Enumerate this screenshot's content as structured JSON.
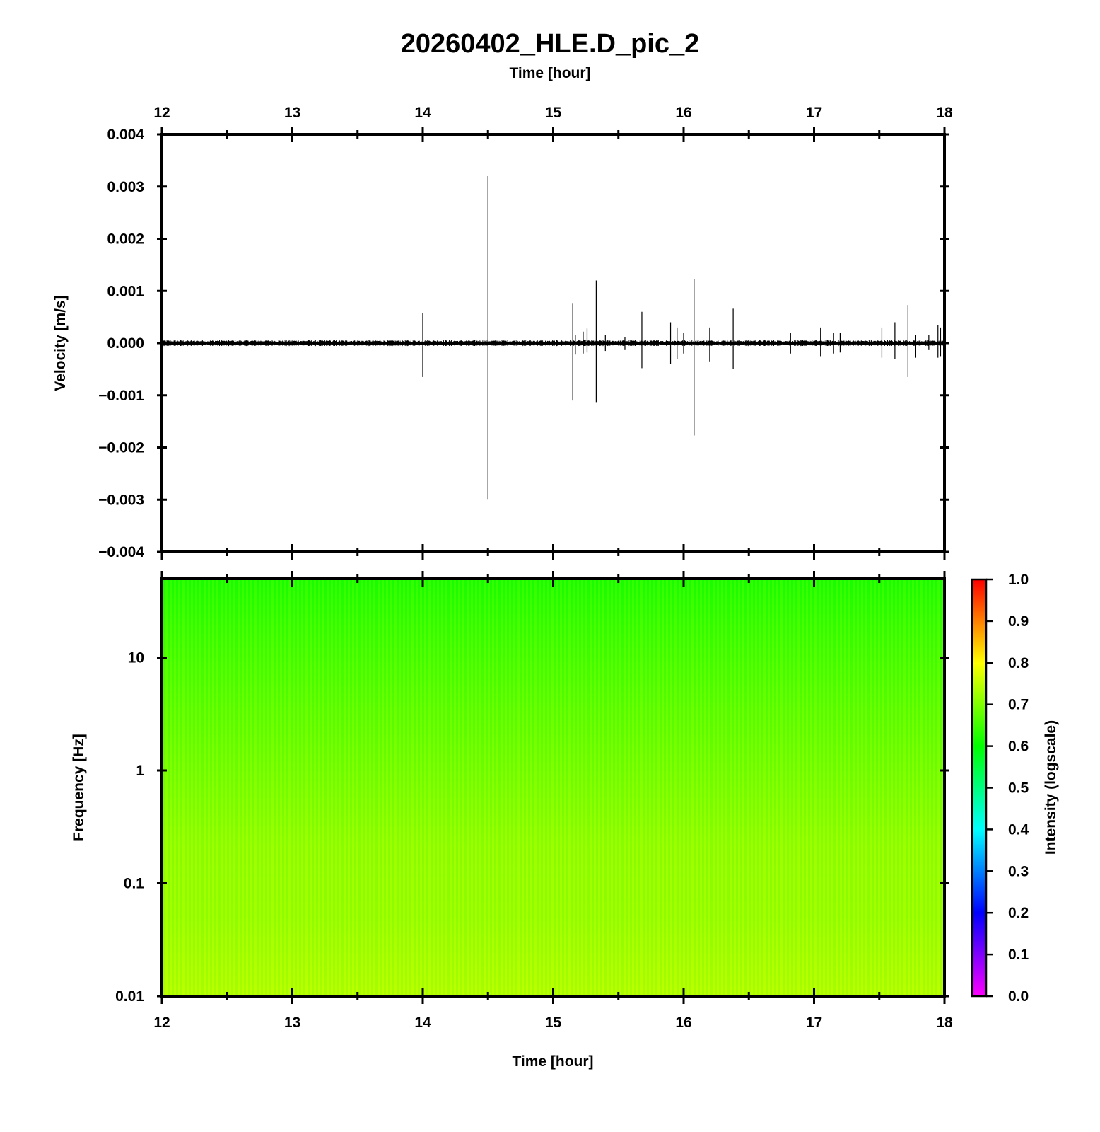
{
  "chart_data": [
    {
      "type": "line",
      "panel": "waveform",
      "title": "20260402_HLE.D_pic_2",
      "top_xlabel": "Time [hour]",
      "ylabel": "Velocity [m/s]",
      "xlim": [
        12,
        18
      ],
      "ylim": [
        -0.004,
        0.004
      ],
      "xticks": [
        12,
        13,
        14,
        15,
        16,
        17,
        18
      ],
      "yticks": [
        {
          "v": 0.004,
          "label": "0.004"
        },
        {
          "v": 0.003,
          "label": "0.003"
        },
        {
          "v": 0.002,
          "label": "0.002"
        },
        {
          "v": 0.001,
          "label": "0.001"
        },
        {
          "v": 0.0,
          "label": "0.000"
        },
        {
          "v": -0.001,
          "label": "−0.001"
        },
        {
          "v": -0.002,
          "label": "−0.002"
        },
        {
          "v": -0.003,
          "label": "−0.003"
        },
        {
          "v": -0.004,
          "label": "−0.004"
        }
      ],
      "grid": false,
      "noise_amplitude": 4e-05,
      "spikes": [
        {
          "t": 14.0,
          "max": 0.00058,
          "min": -0.00065
        },
        {
          "t": 14.5,
          "max": 0.0032,
          "min": -0.003
        },
        {
          "t": 15.15,
          "max": 0.00077,
          "min": -0.0011
        },
        {
          "t": 15.17,
          "max": 0.00015,
          "min": -0.00022
        },
        {
          "t": 15.23,
          "max": 0.00022,
          "min": -0.0002
        },
        {
          "t": 15.26,
          "max": 0.00028,
          "min": -0.00018
        },
        {
          "t": 15.33,
          "max": 0.0012,
          "min": -0.00113
        },
        {
          "t": 15.4,
          "max": 0.00015,
          "min": -0.00015
        },
        {
          "t": 15.55,
          "max": 0.00012,
          "min": -0.00012
        },
        {
          "t": 15.68,
          "max": 0.0006,
          "min": -0.00048
        },
        {
          "t": 15.9,
          "max": 0.0004,
          "min": -0.0004
        },
        {
          "t": 15.95,
          "max": 0.0003,
          "min": -0.0003
        },
        {
          "t": 16.0,
          "max": 0.0002,
          "min": -0.0002
        },
        {
          "t": 16.08,
          "max": 0.00123,
          "min": -0.00177
        },
        {
          "t": 16.2,
          "max": 0.0003,
          "min": -0.00035
        },
        {
          "t": 16.38,
          "max": 0.00066,
          "min": -0.0005
        },
        {
          "t": 16.82,
          "max": 0.0002,
          "min": -0.0002
        },
        {
          "t": 17.05,
          "max": 0.0003,
          "min": -0.00025
        },
        {
          "t": 17.15,
          "max": 0.0002,
          "min": -0.0002
        },
        {
          "t": 17.2,
          "max": 0.0002,
          "min": -0.00018
        },
        {
          "t": 17.52,
          "max": 0.0003,
          "min": -0.00028
        },
        {
          "t": 17.62,
          "max": 0.0004,
          "min": -0.0003
        },
        {
          "t": 17.72,
          "max": 0.00073,
          "min": -0.00065
        },
        {
          "t": 17.78,
          "max": 0.00015,
          "min": -0.00028
        },
        {
          "t": 17.88,
          "max": 0.00015,
          "min": -0.00012
        },
        {
          "t": 17.95,
          "max": 0.00035,
          "min": -0.00028
        },
        {
          "t": 17.97,
          "max": 0.0003,
          "min": -0.00025
        }
      ]
    },
    {
      "type": "heatmap",
      "panel": "spectrogram",
      "xlabel": "Time [hour]",
      "ylabel": "Frequency [Hz]",
      "xlim": [
        12,
        18
      ],
      "ylim": [
        0.01,
        50
      ],
      "yscale": "log",
      "xticks": [
        12,
        13,
        14,
        15,
        16,
        17,
        18
      ],
      "yticks": [
        {
          "v": 0.01,
          "label": "0.01"
        },
        {
          "v": 0.1,
          "label": "0.1"
        },
        {
          "v": 1,
          "label": "1"
        },
        {
          "v": 10,
          "label": "10"
        }
      ],
      "intensity_profile": [
        {
          "f": 0.01,
          "intensity": 0.74
        },
        {
          "f": 0.05,
          "intensity": 0.72
        },
        {
          "f": 0.2,
          "intensity": 0.715
        },
        {
          "f": 1,
          "intensity": 0.69
        },
        {
          "f": 5,
          "intensity": 0.665
        },
        {
          "f": 20,
          "intensity": 0.64
        },
        {
          "f": 50,
          "intensity": 0.62
        }
      ],
      "colorbar": {
        "label": "Intensity (logscale)",
        "range": [
          0.0,
          1.0
        ],
        "ticks": [
          {
            "v": 0.0,
            "label": "0.0"
          },
          {
            "v": 0.1,
            "label": "0.1"
          },
          {
            "v": 0.2,
            "label": "0.2"
          },
          {
            "v": 0.3,
            "label": "0.3"
          },
          {
            "v": 0.4,
            "label": "0.4"
          },
          {
            "v": 0.5,
            "label": "0.5"
          },
          {
            "v": 0.6,
            "label": "0.6"
          },
          {
            "v": 0.7,
            "label": "0.7"
          },
          {
            "v": 0.8,
            "label": "0.8"
          },
          {
            "v": 0.9,
            "label": "0.9"
          },
          {
            "v": 1.0,
            "label": "1.0"
          }
        ],
        "colormap": [
          "#ff00ff",
          "#0000ff",
          "#00ffff",
          "#00ff00",
          "#ffff00",
          "#ff0000"
        ]
      }
    }
  ]
}
